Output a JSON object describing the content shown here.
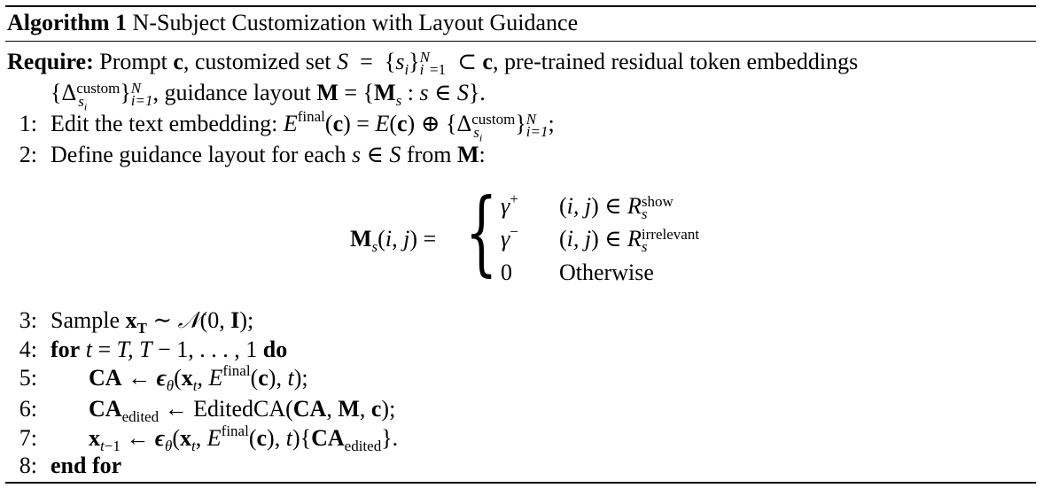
{
  "algorithm": {
    "label": "Algorithm 1",
    "title": "N-Subject Customization with Layout Guidance"
  },
  "require": {
    "keyword": "Require:",
    "text_1": "Prompt c, customized set S = {sᵢ}ᵢ₌₁ᴺ ⊂ c, pre-trained residual token embeddings",
    "text_2": "{Δˢⁱ custom}ᵢ₌₁ᴺ, guidance layout M = {Mₛ : s ∈ S}."
  },
  "steps": [
    {
      "num": "1:",
      "text": "Edit the text embedding: E final(c) = E(c) ⊕ {Δ custom sᵢ}ᵢ₌₁ᴺ;"
    },
    {
      "num": "2:",
      "text": "Define guidance layout for each s ∈ S from M:"
    },
    {
      "num": "3:",
      "text": "Sample x_T ∼ 𝒩(0, I);"
    },
    {
      "num": "4:",
      "text": "for t = T, T − 1, . . . , 1 do"
    },
    {
      "num": "5:",
      "text": "CA ← ε_θ(x_t, E final(c), t);"
    },
    {
      "num": "6:",
      "text": "CA edited ← EditedCA(CA, M, c);"
    },
    {
      "num": "7:",
      "text": "x_{t−1} ← ε_θ(x_t, E final(c), t){CA edited}."
    },
    {
      "num": "8:",
      "text": "end for"
    }
  ],
  "equation": {
    "lhs": "Mₛ(i, j) =",
    "cases": [
      {
        "value": "γ⁺",
        "condition": "(i, j) ∈ R show s"
      },
      {
        "value": "γ⁻",
        "condition": "(i, j) ∈ R irrelevant s"
      },
      {
        "value": "0",
        "condition": "Otherwise"
      }
    ]
  }
}
